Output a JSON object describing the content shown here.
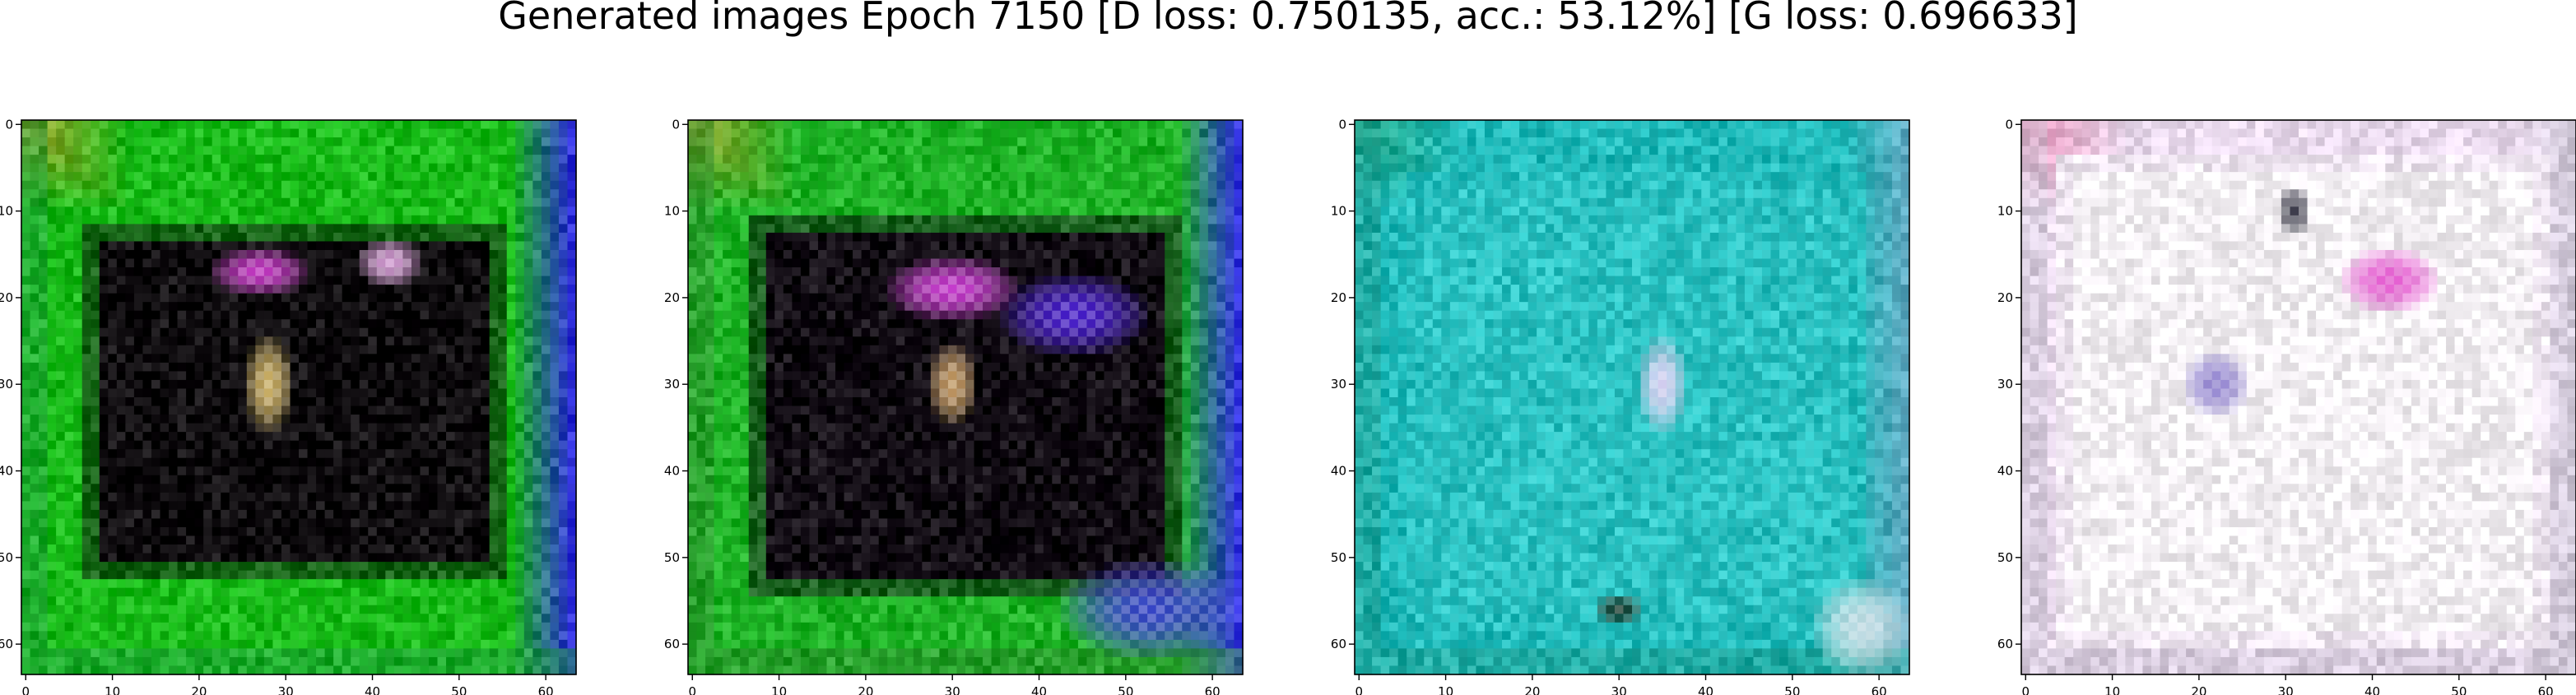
{
  "figure_title": "Generated images Epoch 7150 [D loss: 0.750135, acc.: 53.12%] [G loss: 0.696633]",
  "chart_data": {
    "type": "heatmap",
    "image_shape": [
      64,
      64
    ],
    "grid": false,
    "xlim": [
      -0.5,
      63.5
    ],
    "ylim": [
      63.5,
      -0.5
    ],
    "xticks": [
      0,
      10,
      20,
      30,
      40,
      50,
      60
    ],
    "yticks": [
      0,
      10,
      20,
      30,
      40,
      50,
      60
    ],
    "panels": [
      {
        "base": "#12b812",
        "inner": "#050205",
        "border": "#1a9a3a",
        "edge_right": "#2a2ad8",
        "topleft": "#d88c2a",
        "inner_rect": [
          7,
          12,
          55,
          52
        ],
        "blobs": [
          {
            "cx": 27,
            "cy": 17,
            "rx": 6,
            "ry": 3,
            "color": "#e040e0"
          },
          {
            "cx": 42,
            "cy": 16,
            "rx": 4,
            "ry": 3,
            "color": "#f0b0f0"
          },
          {
            "cx": 28,
            "cy": 30,
            "rx": 3,
            "ry": 6,
            "color": "#e8c870"
          }
        ]
      },
      {
        "base": "#18b020",
        "inner": "#08020a",
        "border": "#2a8a2a",
        "edge_right": "#3030e0",
        "topleft": "#c09020",
        "inner_rect": [
          7,
          11,
          56,
          54
        ],
        "blobs": [
          {
            "cx": 44,
            "cy": 22,
            "rx": 9,
            "ry": 5,
            "color": "#5020e8"
          },
          {
            "cx": 30,
            "cy": 19,
            "rx": 8,
            "ry": 4,
            "color": "#e040e8"
          },
          {
            "cx": 53,
            "cy": 56,
            "rx": 11,
            "ry": 6,
            "color": "#3a30e0"
          },
          {
            "cx": 30,
            "cy": 30,
            "rx": 3,
            "ry": 5,
            "color": "#e0b070"
          }
        ]
      },
      {
        "base": "#1ab8b8",
        "inner": "#26c0c0",
        "border": "#1a9a8a",
        "edge_right": "#5aa8c0",
        "topleft": "#1a9a6a",
        "inner_rect": [
          6,
          6,
          58,
          58
        ],
        "blobs": [
          {
            "cx": 35,
            "cy": 30,
            "rx": 3,
            "ry": 6,
            "color": "#f0d0f8"
          },
          {
            "cx": 30,
            "cy": 56,
            "rx": 3,
            "ry": 2,
            "color": "#102010"
          },
          {
            "cx": 58,
            "cy": 58,
            "rx": 6,
            "ry": 6,
            "color": "#d8e0e8"
          }
        ]
      },
      {
        "base": "#e8d8ec",
        "inner": "#f4f0f4",
        "border": "#c8c0d0",
        "edge_right": "#d0c8d8",
        "topleft": "#e070a0",
        "inner_rect": [
          4,
          4,
          60,
          60
        ],
        "blobs": [
          {
            "cx": 42,
            "cy": 18,
            "rx": 6,
            "ry": 4,
            "color": "#e040c8"
          },
          {
            "cx": 31,
            "cy": 10,
            "rx": 2,
            "ry": 3,
            "color": "#202030"
          },
          {
            "cx": 22,
            "cy": 30,
            "rx": 4,
            "ry": 4,
            "color": "#8070c8"
          }
        ]
      }
    ]
  }
}
